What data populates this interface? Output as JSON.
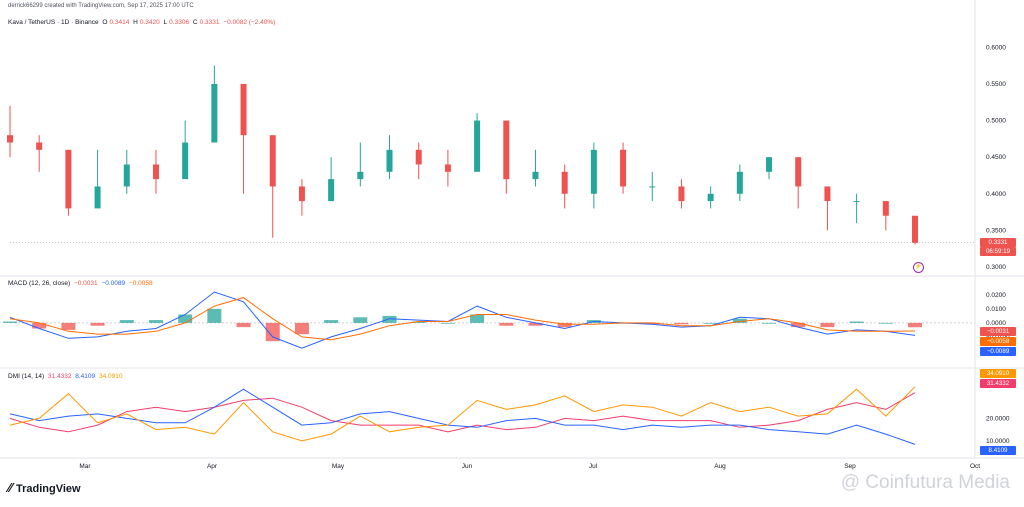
{
  "created_by": "derrick66299 created with TradingView.com, Sep 17, 2025 17:00 UTC",
  "symbol_line": {
    "symbol": "Kava / TetherUS · 1D · Binance",
    "o_label": "O",
    "o": "0.3414",
    "h_label": "H",
    "h": "0.3420",
    "l_label": "L",
    "l": "0.3306",
    "c_label": "C",
    "c": "0.3331",
    "change": "−0.0082 (−2.40%)"
  },
  "price_axis": [
    "0.6000",
    "0.5500",
    "0.5000",
    "0.4500",
    "0.4000",
    "0.3500",
    "0.3000"
  ],
  "last_price_tag": {
    "price": "0.3331",
    "countdown": "06:59:19"
  },
  "macd": {
    "title": "MACD (12, 26, close)",
    "hist": "−0.0031",
    "macd": "−0.0089",
    "signal": "−0.0058",
    "axis": [
      "0.0200",
      "0.0100",
      "0.0000",
      "−0.0100",
      "−0.0200"
    ],
    "tags": {
      "hist": "−0.0031",
      "signal": "−0.0058",
      "macd": "−0.0089"
    }
  },
  "dmi": {
    "title": "DMI (14, 14)",
    "plus_di": "31.4332",
    "minus_di": "8.4109",
    "adx": "34.0910",
    "axis": [
      "20.0000",
      "10.0000"
    ],
    "tags": {
      "adx": "34.0910",
      "plus_di": "31.4332",
      "minus_di": "8.4109"
    }
  },
  "months": [
    "Mar",
    "Apr",
    "May",
    "Jun",
    "Jul",
    "Aug",
    "Sep",
    "Oct"
  ],
  "brand": "TradingView",
  "watermark": "@ Coinfutura Media",
  "colors": {
    "up": "#26a69a",
    "down": "#ef5350",
    "macd": "#2962ff",
    "signal": "#ff6d00",
    "plus_di": "#f23c6b",
    "minus_di": "#2962ff",
    "adx": "#ff9800"
  },
  "chart_data": [
    {
      "type": "candlestick",
      "title": "Kava / TetherUS · 1D · Binance",
      "ylim": [
        0.3,
        0.61
      ],
      "x": [
        "Feb 14",
        "Feb 20",
        "Feb 27",
        "Mar 6",
        "Mar 13",
        "Mar 20",
        "Mar 27",
        "Apr 3",
        "Apr 10",
        "Apr 17",
        "Apr 24",
        "May 1",
        "May 8",
        "May 15",
        "May 22",
        "May 29",
        "Jun 5",
        "Jun 12",
        "Jun 19",
        "Jun 26",
        "Jul 3",
        "Jul 10",
        "Jul 17",
        "Jul 24",
        "Jul 31",
        "Aug 7",
        "Aug 14",
        "Aug 21",
        "Aug 28",
        "Sep 4",
        "Sep 11",
        "Sep 17"
      ],
      "close": [
        0.47,
        0.46,
        0.38,
        0.41,
        0.44,
        0.42,
        0.47,
        0.55,
        0.48,
        0.41,
        0.39,
        0.42,
        0.43,
        0.46,
        0.44,
        0.43,
        0.5,
        0.42,
        0.43,
        0.4,
        0.46,
        0.41,
        0.41,
        0.39,
        0.4,
        0.43,
        0.45,
        0.41,
        0.39,
        0.39,
        0.37,
        0.3331
      ],
      "high": [
        0.52,
        0.48,
        0.42,
        0.46,
        0.46,
        0.46,
        0.5,
        0.575,
        0.53,
        0.46,
        0.42,
        0.45,
        0.47,
        0.48,
        0.47,
        0.46,
        0.51,
        0.45,
        0.46,
        0.44,
        0.47,
        0.47,
        0.43,
        0.42,
        0.41,
        0.44,
        0.45,
        0.45,
        0.4,
        0.4,
        0.38,
        0.342
      ],
      "low": [
        0.45,
        0.43,
        0.37,
        0.39,
        0.4,
        0.4,
        0.45,
        0.48,
        0.4,
        0.34,
        0.37,
        0.4,
        0.41,
        0.42,
        0.42,
        0.41,
        0.44,
        0.4,
        0.41,
        0.38,
        0.38,
        0.4,
        0.39,
        0.38,
        0.38,
        0.39,
        0.42,
        0.38,
        0.35,
        0.36,
        0.35,
        0.3306
      ]
    },
    {
      "type": "line",
      "title": "MACD (12, 26, close)",
      "ylim": [
        -0.025,
        0.027
      ],
      "series": [
        {
          "name": "MACD",
          "values": [
            0.004,
            -0.004,
            -0.011,
            -0.01,
            -0.006,
            -0.004,
            0.006,
            0.022,
            0.015,
            -0.01,
            -0.018,
            -0.01,
            -0.004,
            0.003,
            0.002,
            0.001,
            0.012,
            0.004,
            0.0,
            -0.004,
            0.001,
            0.0,
            -0.001,
            -0.003,
            -0.002,
            0.004,
            0.003,
            -0.003,
            -0.008,
            -0.005,
            -0.006,
            -0.0089
          ]
        },
        {
          "name": "Signal",
          "values": [
            0.003,
            0.0,
            -0.006,
            -0.008,
            -0.008,
            -0.006,
            0.0,
            0.012,
            0.018,
            0.003,
            -0.01,
            -0.012,
            -0.008,
            -0.002,
            0.001,
            0.001,
            0.006,
            0.006,
            0.002,
            -0.001,
            -0.001,
            0.0,
            0.0,
            -0.002,
            -0.002,
            0.001,
            0.003,
            0.0,
            -0.005,
            -0.006,
            -0.006,
            -0.0058
          ]
        },
        {
          "name": "Histogram",
          "values": [
            0.001,
            -0.004,
            -0.005,
            -0.002,
            0.002,
            0.002,
            0.006,
            0.01,
            -0.003,
            -0.013,
            -0.008,
            0.002,
            0.004,
            0.005,
            0.001,
            0.0,
            0.006,
            -0.002,
            -0.002,
            -0.003,
            0.002,
            0.0,
            -0.001,
            -0.001,
            0.0,
            0.003,
            0.0,
            -0.003,
            -0.003,
            0.001,
            0.0,
            -0.0031
          ]
        }
      ]
    },
    {
      "type": "line",
      "title": "DMI (14, 14)",
      "ylim": [
        5,
        38
      ],
      "series": [
        {
          "name": "+DI",
          "values": [
            20,
            16,
            14,
            17,
            23,
            25,
            23,
            25,
            28,
            29,
            25,
            19,
            17,
            17,
            17,
            14,
            17,
            15,
            16,
            20,
            19,
            21,
            19,
            19,
            19,
            16,
            17,
            19,
            24,
            27,
            24,
            31.4332
          ]
        },
        {
          "name": "−DI",
          "values": [
            22,
            19,
            21,
            22,
            20,
            18,
            18,
            25,
            33,
            25,
            17,
            18,
            22,
            23,
            20,
            17,
            16,
            19,
            20,
            17,
            17,
            15,
            17,
            16,
            17,
            17,
            15,
            14,
            13,
            17,
            13,
            8.4109
          ]
        },
        {
          "name": "ADX",
          "values": [
            17,
            20,
            31,
            18,
            22,
            15,
            16,
            13,
            27,
            14,
            10,
            13,
            21,
            14,
            16,
            17,
            28,
            24,
            26,
            30,
            23,
            26,
            25,
            21,
            27,
            23,
            25,
            21,
            22,
            33,
            21,
            34.091
          ]
        }
      ]
    }
  ]
}
